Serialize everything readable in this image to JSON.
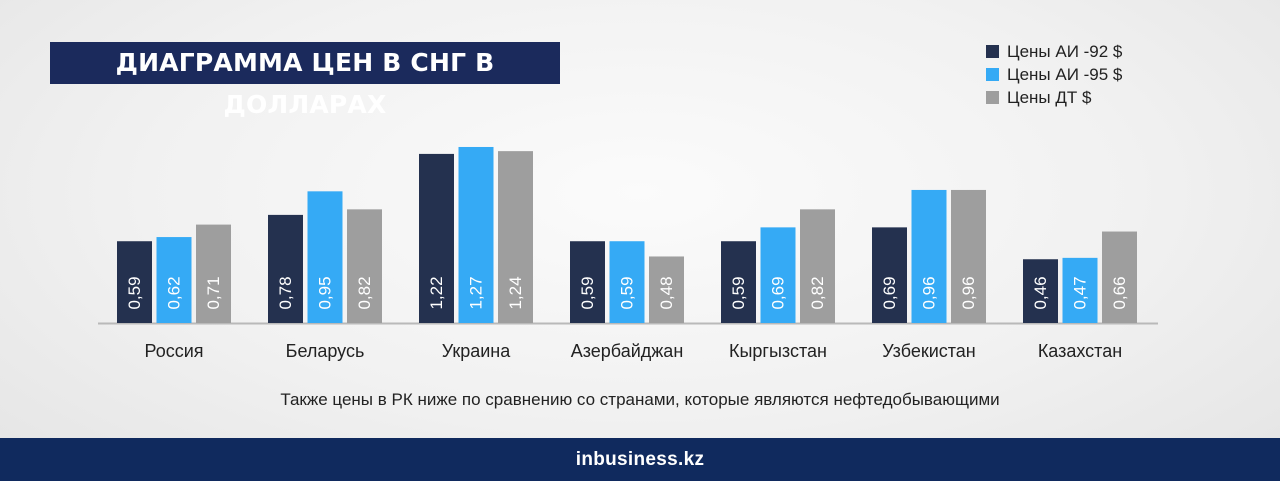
{
  "title": "ДИАГРАММА ЦЕН В СНГ В ДОЛЛАРАХ",
  "note": "Также цены в РК ниже по сравнению со странами, которые являются нефтедобывающими",
  "footer": {
    "logo_in": "in",
    "logo_rest": "business",
    "logo_kz": ".kz"
  },
  "colors": {
    "ai92": "#24314f",
    "ai95": "#35aaf5",
    "dt": "#9e9e9e",
    "axis": "#b9b9b9",
    "title_bg": "#1b2a5c",
    "footer_bg": "#102a5e"
  },
  "chart_data": {
    "type": "bar",
    "categories": [
      "Россия",
      "Беларусь",
      "Украина",
      "Азербайджан",
      "Кыргызстан",
      "Узбекистан",
      "Казахстан"
    ],
    "series": [
      {
        "name": "Цены АИ -92 $",
        "values": [
          0.59,
          0.78,
          1.22,
          0.59,
          0.59,
          0.69,
          0.46
        ],
        "labels": [
          "0,59",
          "0,78",
          "1,22",
          "0,59",
          "0,59",
          "0,69",
          "0,46"
        ]
      },
      {
        "name": "Цены АИ -95 $",
        "values": [
          0.62,
          0.95,
          1.27,
          0.59,
          0.69,
          0.96,
          0.47
        ],
        "labels": [
          "0,62",
          "0,95",
          "1,27",
          "0,59",
          "0,69",
          "0,96",
          "0,47"
        ]
      },
      {
        "name": "Цены ДТ $",
        "values": [
          0.71,
          0.82,
          1.24,
          0.48,
          0.82,
          0.96,
          0.66
        ],
        "labels": [
          "0,71",
          "0,82",
          "1,24",
          "0,48",
          "0,82",
          "0,96",
          "0,66"
        ]
      }
    ],
    "ylim": [
      0,
      1.3
    ],
    "legend": "top-right",
    "grid": false
  }
}
